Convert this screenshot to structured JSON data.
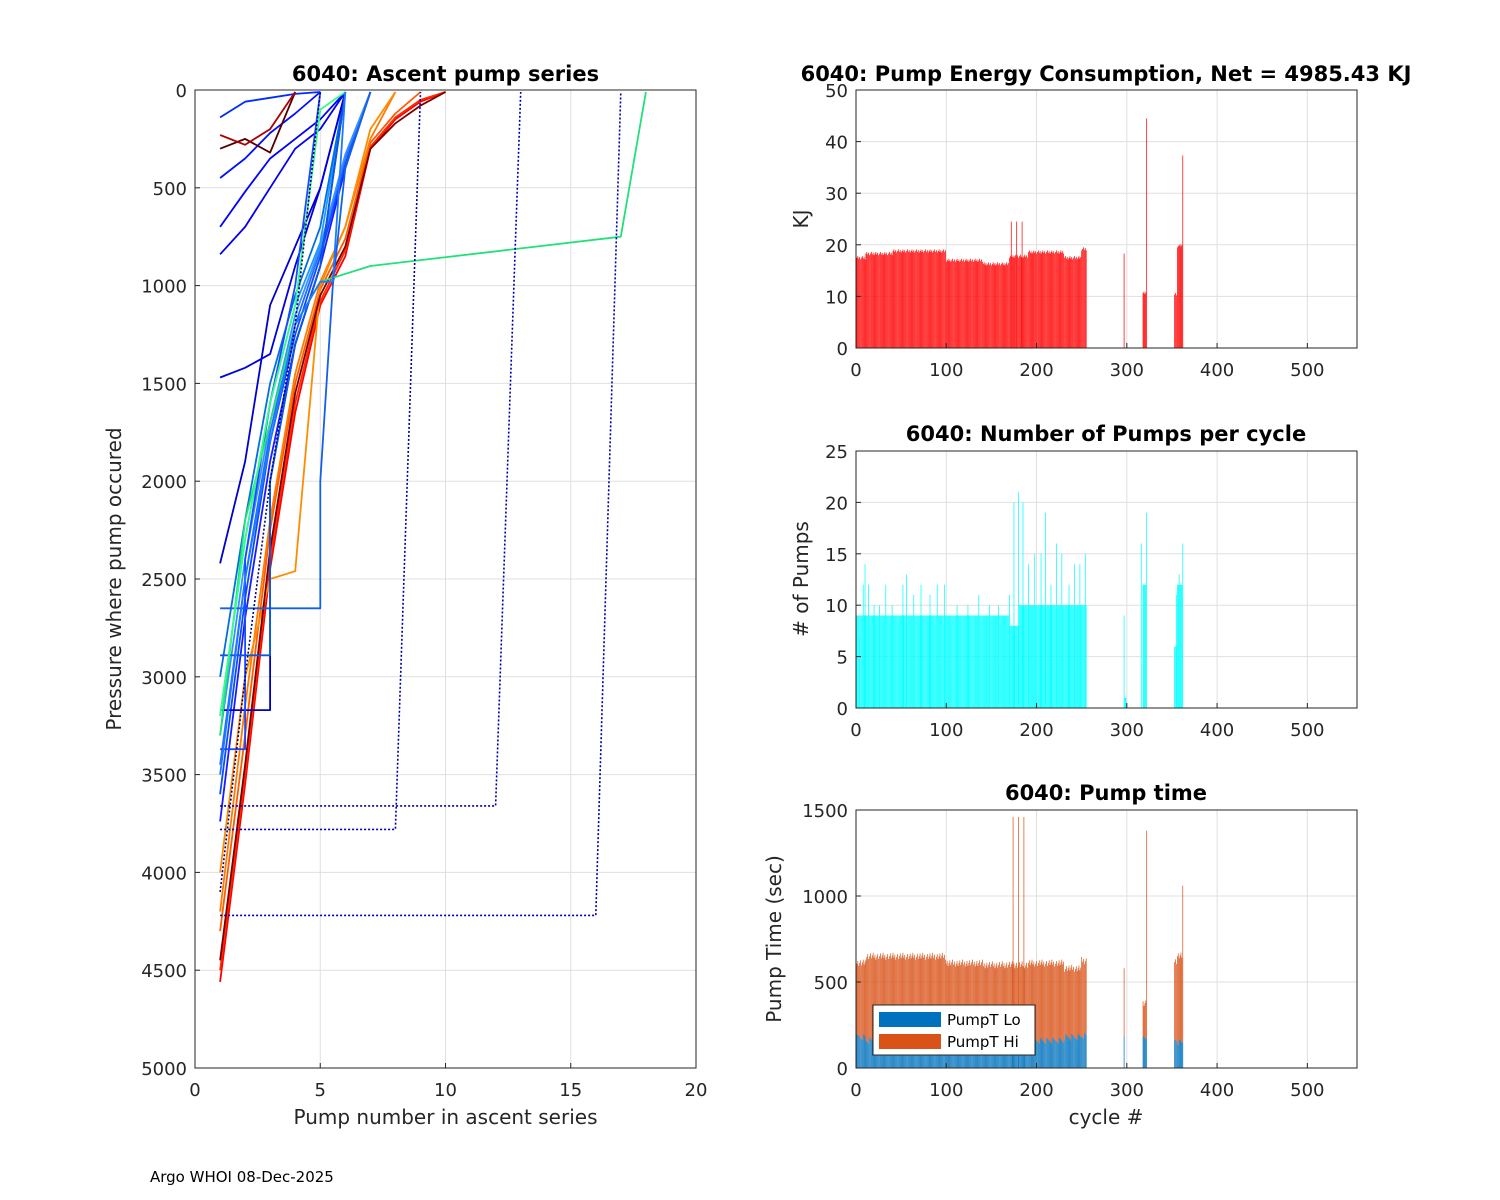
{
  "footer": "Argo WHOI 08-Dec-2025",
  "chart_data": [
    {
      "id": "ascent",
      "type": "line",
      "title": "6040: Ascent pump series",
      "xlabel": "Pump number in ascent series",
      "ylabel": "Pressure where pump occured",
      "xlim": [
        0,
        20
      ],
      "ylim": [
        0,
        5000
      ],
      "y_reversed": true,
      "xticks": [
        0,
        5,
        10,
        15,
        20
      ],
      "yticks": [
        0,
        500,
        1000,
        1500,
        2000,
        2500,
        3000,
        3500,
        4000,
        4500,
        5000
      ],
      "grid": true,
      "series": [
        {
          "color": "#ff0000",
          "x": [
            1,
            2,
            3,
            4,
            5,
            6,
            7,
            8,
            9,
            10
          ],
          "y": [
            4560,
            3550,
            2450,
            1650,
            1100,
            850,
            300,
            150,
            60,
            10
          ]
        },
        {
          "color": "#ff2a00",
          "x": [
            1,
            2,
            3,
            4,
            5,
            6,
            7,
            8,
            9,
            10
          ],
          "y": [
            4500,
            3500,
            2400,
            1600,
            1080,
            820,
            290,
            140,
            50,
            10
          ]
        },
        {
          "color": "#ff5a00",
          "x": [
            1,
            2,
            3,
            4,
            5,
            6,
            7,
            8,
            9
          ],
          "y": [
            4300,
            3300,
            2250,
            1500,
            1020,
            760,
            270,
            120,
            10
          ]
        },
        {
          "color": "#ff7a00",
          "x": [
            1,
            2,
            3,
            4,
            5,
            6,
            7,
            8
          ],
          "y": [
            4200,
            3150,
            2200,
            1450,
            980,
            700,
            250,
            10
          ]
        },
        {
          "color": "#ff8c00",
          "x": [
            1,
            2,
            3,
            4,
            5,
            6,
            7,
            8
          ],
          "y": [
            4000,
            3000,
            2500,
            2460,
            1000,
            700,
            200,
            10
          ]
        },
        {
          "color": "#7a0000",
          "x": [
            1,
            2,
            3,
            4,
            5,
            6,
            7,
            8,
            9,
            10
          ],
          "y": [
            4450,
            3450,
            2350,
            1550,
            1050,
            800,
            300,
            170,
            80,
            10
          ]
        },
        {
          "color": "#1a1aff",
          "x": [
            1,
            2,
            3,
            4,
            5,
            6,
            7
          ],
          "y": [
            3740,
            2700,
            1900,
            1300,
            900,
            400,
            10
          ]
        },
        {
          "color": "#0a4bff",
          "x": [
            1,
            2,
            3,
            4,
            5,
            6,
            7
          ],
          "y": [
            3600,
            2600,
            1800,
            1250,
            850,
            380,
            10
          ]
        },
        {
          "color": "#1e6fff",
          "x": [
            1,
            2,
            3,
            4,
            5,
            6,
            7
          ],
          "y": [
            3450,
            2500,
            1750,
            1200,
            820,
            350,
            10
          ]
        },
        {
          "color": "#3a8fff",
          "x": [
            1,
            2,
            3,
            4,
            5,
            6,
            7
          ],
          "y": [
            3300,
            2400,
            1700,
            1150,
            800,
            330,
            10
          ]
        },
        {
          "color": "#1a9aff",
          "x": [
            1,
            2,
            3,
            4,
            5,
            6
          ],
          "y": [
            3200,
            2300,
            1600,
            1100,
            780,
            10
          ]
        },
        {
          "color": "#0070e0",
          "x": [
            1,
            2,
            3,
            4,
            5,
            6
          ],
          "y": [
            3000,
            2200,
            1500,
            1050,
            700,
            10
          ]
        },
        {
          "color": "#0000cc",
          "x": [
            1,
            2,
            3,
            4,
            5,
            6
          ],
          "y": [
            2420,
            1900,
            1100,
            800,
            500,
            10
          ]
        },
        {
          "color": "#0000dd",
          "x": [
            1,
            2,
            3,
            4,
            5,
            6
          ],
          "y": [
            1470,
            1420,
            1350,
            900,
            500,
            10
          ]
        },
        {
          "color": "#0000ee",
          "x": [
            1,
            2,
            3,
            4,
            5,
            6
          ],
          "y": [
            840,
            700,
            500,
            300,
            200,
            10
          ]
        },
        {
          "color": "#0000ff",
          "x": [
            1,
            2,
            3,
            4,
            5,
            6
          ],
          "y": [
            700,
            520,
            350,
            250,
            150,
            10
          ]
        },
        {
          "color": "#0011ff",
          "x": [
            1,
            2,
            3,
            4,
            5
          ],
          "y": [
            450,
            350,
            220,
            120,
            10
          ]
        },
        {
          "color": "#002bff",
          "x": [
            1,
            2,
            3,
            4,
            5
          ],
          "y": [
            140,
            60,
            40,
            20,
            10
          ]
        },
        {
          "color": "#1560e8",
          "x": [
            1,
            5,
            5,
            5.5,
            6,
            7
          ],
          "y": [
            2650,
            2650,
            2000,
            1000,
            400,
            10
          ]
        },
        {
          "color": "#0000c8",
          "x": [
            1,
            3,
            3,
            4,
            5,
            6
          ],
          "y": [
            3170,
            3170,
            2000,
            1300,
            900,
            10
          ]
        },
        {
          "color": "#0a5ae0",
          "x": [
            1,
            3,
            3,
            4,
            5,
            6
          ],
          "y": [
            2890,
            2890,
            2000,
            1300,
            900,
            10
          ]
        },
        {
          "color": "#1a4aff",
          "x": [
            1,
            2,
            2,
            3,
            4,
            5
          ],
          "y": [
            3370,
            3370,
            2400,
            1600,
            1000,
            10
          ]
        },
        {
          "color": "#22e07a",
          "x": [
            1,
            2,
            3,
            4,
            5,
            7,
            17,
            18
          ],
          "y": [
            3300,
            2200,
            1700,
            1200,
            980,
            900,
            750,
            10
          ]
        },
        {
          "color": "#33ff88",
          "x": [
            1,
            2,
            3,
            4,
            5,
            6
          ],
          "y": [
            3200,
            2300,
            1600,
            1100,
            100,
            10
          ]
        },
        {
          "color": "#1e78ff",
          "x": [
            1,
            2,
            3,
            4,
            5,
            5.5,
            6
          ],
          "y": [
            3500,
            2500,
            1800,
            1200,
            980,
            980,
            10
          ]
        },
        {
          "color": "#0000aa",
          "x": [
            1,
            8,
            9
          ],
          "y": [
            3780,
            3780,
            10
          ],
          "dash": true
        },
        {
          "color": "#0000aa",
          "x": [
            1,
            12,
            13
          ],
          "y": [
            3660,
            3660,
            10
          ],
          "dash": true
        },
        {
          "color": "#0000aa",
          "x": [
            1,
            16,
            17
          ],
          "y": [
            4220,
            4220,
            10
          ],
          "dash": true
        },
        {
          "color": "#000080",
          "x": [
            1,
            2,
            3,
            4,
            5
          ],
          "y": [
            4100,
            3000,
            2000,
            1200,
            10
          ],
          "dash": true
        },
        {
          "color": "#550000",
          "x": [
            1,
            2,
            3,
            4
          ],
          "y": [
            300,
            250,
            320,
            10
          ]
        },
        {
          "color": "#aa0000",
          "x": [
            1,
            2,
            3,
            4
          ],
          "y": [
            230,
            280,
            200,
            10
          ]
        }
      ]
    },
    {
      "id": "energy",
      "type": "bar",
      "title": "6040: Pump Energy Consumption,  Net = 4985.43 KJ",
      "xlabel": "",
      "ylabel": "KJ",
      "xlim": [
        0,
        555
      ],
      "ylim": [
        0,
        50
      ],
      "xticks": [
        0,
        100,
        200,
        300,
        400,
        500
      ],
      "yticks": [
        0,
        10,
        20,
        30,
        40,
        50
      ],
      "grid": true,
      "color": "#ff0000",
      "segments": [
        {
          "start": 1,
          "end": 10,
          "value": 17.5
        },
        {
          "start": 11,
          "end": 40,
          "value": 18.3
        },
        {
          "start": 41,
          "end": 99,
          "value": 18.8
        },
        {
          "start": 100,
          "end": 140,
          "value": 17.0
        },
        {
          "start": 141,
          "end": 169,
          "value": 16.3
        },
        {
          "start": 170,
          "end": 190,
          "value": 17.8
        },
        {
          "start": 191,
          "end": 230,
          "value": 18.6
        },
        {
          "start": 231,
          "end": 249,
          "value": 17.5
        },
        {
          "start": 250,
          "end": 255,
          "value": 19.2
        },
        {
          "start": 297,
          "end": 297,
          "value": 18.0
        },
        {
          "start": 318,
          "end": 321,
          "value": 10.8
        },
        {
          "start": 353,
          "end": 355,
          "value": 10.5
        },
        {
          "start": 356,
          "end": 357,
          "value": 19.5
        },
        {
          "start": 358,
          "end": 361,
          "value": 20.0
        }
      ],
      "spikes": [
        {
          "cycle": 172,
          "value": 24.5
        },
        {
          "cycle": 178,
          "value": 24.5
        },
        {
          "cycle": 184,
          "value": 24.5
        },
        {
          "cycle": 322,
          "value": 44.5
        },
        {
          "cycle": 362,
          "value": 37.3
        }
      ]
    },
    {
      "id": "pumps",
      "type": "bar",
      "title": "6040: Number of Pumps per cycle",
      "xlabel": "",
      "ylabel": "# of Pumps",
      "xlim": [
        0,
        555
      ],
      "ylim": [
        0,
        25
      ],
      "xticks": [
        0,
        100,
        200,
        300,
        400,
        500
      ],
      "yticks": [
        0,
        5,
        10,
        15,
        20,
        25
      ],
      "grid": true,
      "color": "#00ffff",
      "segments": [
        {
          "start": 1,
          "end": 99,
          "value": 9
        },
        {
          "start": 100,
          "end": 169,
          "value": 9
        },
        {
          "start": 170,
          "end": 180,
          "value": 8
        },
        {
          "start": 181,
          "end": 255,
          "value": 10
        },
        {
          "start": 297,
          "end": 297,
          "value": 9
        },
        {
          "start": 298,
          "end": 299,
          "value": 1
        },
        {
          "start": 318,
          "end": 321,
          "value": 12
        },
        {
          "start": 353,
          "end": 355,
          "value": 6
        },
        {
          "start": 356,
          "end": 361,
          "value": 12
        }
      ],
      "spikes": [
        {
          "cycle": 4,
          "value": 7
        },
        {
          "cycle": 8,
          "value": 12
        },
        {
          "cycle": 10,
          "value": 14
        },
        {
          "cycle": 14,
          "value": 12
        },
        {
          "cycle": 20,
          "value": 10
        },
        {
          "cycle": 26,
          "value": 10
        },
        {
          "cycle": 33,
          "value": 12
        },
        {
          "cycle": 40,
          "value": 10
        },
        {
          "cycle": 52,
          "value": 12
        },
        {
          "cycle": 56,
          "value": 13
        },
        {
          "cycle": 64,
          "value": 11
        },
        {
          "cycle": 72,
          "value": 12
        },
        {
          "cycle": 82,
          "value": 11
        },
        {
          "cycle": 90,
          "value": 12
        },
        {
          "cycle": 98,
          "value": 12
        },
        {
          "cycle": 112,
          "value": 10
        },
        {
          "cycle": 124,
          "value": 10
        },
        {
          "cycle": 136,
          "value": 11
        },
        {
          "cycle": 148,
          "value": 10
        },
        {
          "cycle": 158,
          "value": 10
        },
        {
          "cycle": 170,
          "value": 11
        },
        {
          "cycle": 175,
          "value": 20
        },
        {
          "cycle": 180,
          "value": 21
        },
        {
          "cycle": 185,
          "value": 20
        },
        {
          "cycle": 191,
          "value": 14
        },
        {
          "cycle": 198,
          "value": 15
        },
        {
          "cycle": 205,
          "value": 15
        },
        {
          "cycle": 210,
          "value": 19
        },
        {
          "cycle": 216,
          "value": 12
        },
        {
          "cycle": 222,
          "value": 16
        },
        {
          "cycle": 228,
          "value": 15
        },
        {
          "cycle": 236,
          "value": 12
        },
        {
          "cycle": 242,
          "value": 14
        },
        {
          "cycle": 248,
          "value": 14
        },
        {
          "cycle": 254,
          "value": 15
        },
        {
          "cycle": 316,
          "value": 16
        },
        {
          "cycle": 322,
          "value": 19
        },
        {
          "cycle": 355,
          "value": 11
        },
        {
          "cycle": 358,
          "value": 13
        },
        {
          "cycle": 362,
          "value": 16
        }
      ]
    },
    {
      "id": "pumptime",
      "type": "bar",
      "title": "6040: Pump time",
      "xlabel": "cycle #",
      "ylabel": "Pump Time (sec)",
      "xlim": [
        0,
        555
      ],
      "ylim": [
        0,
        1500
      ],
      "xticks": [
        0,
        100,
        200,
        300,
        400,
        500
      ],
      "yticks": [
        0,
        500,
        1000,
        1500
      ],
      "grid": true,
      "stacked": true,
      "legend_position": "bottom-left",
      "series": [
        {
          "name": "PumpT Lo",
          "color": "#0072bd"
        },
        {
          "name": "PumpT Hi",
          "color": "#d95319"
        }
      ],
      "segments": [
        {
          "start": 1,
          "end": 10,
          "lo": 180,
          "total": 610
        },
        {
          "start": 11,
          "end": 99,
          "lo": 160,
          "total": 650
        },
        {
          "start": 100,
          "end": 140,
          "lo": 150,
          "total": 610
        },
        {
          "start": 141,
          "end": 169,
          "lo": 150,
          "total": 600
        },
        {
          "start": 170,
          "end": 190,
          "lo": 150,
          "total": 600
        },
        {
          "start": 191,
          "end": 230,
          "lo": 160,
          "total": 610
        },
        {
          "start": 231,
          "end": 249,
          "lo": 180,
          "total": 580
        },
        {
          "start": 250,
          "end": 255,
          "lo": 190,
          "total": 625
        },
        {
          "start": 297,
          "end": 297,
          "lo": 180,
          "total": 600
        },
        {
          "start": 318,
          "end": 321,
          "lo": 180,
          "total": 380
        },
        {
          "start": 353,
          "end": 355,
          "lo": 160,
          "total": 620
        },
        {
          "start": 356,
          "end": 361,
          "lo": 150,
          "total": 650
        }
      ],
      "spikes": [
        {
          "cycle": 174,
          "lo": 150,
          "total": 1460
        },
        {
          "cycle": 180,
          "lo": 150,
          "total": 1460
        },
        {
          "cycle": 186,
          "lo": 150,
          "total": 1460
        },
        {
          "cycle": 322,
          "lo": 180,
          "total": 1380
        },
        {
          "cycle": 362,
          "lo": 150,
          "total": 1060
        }
      ]
    }
  ]
}
